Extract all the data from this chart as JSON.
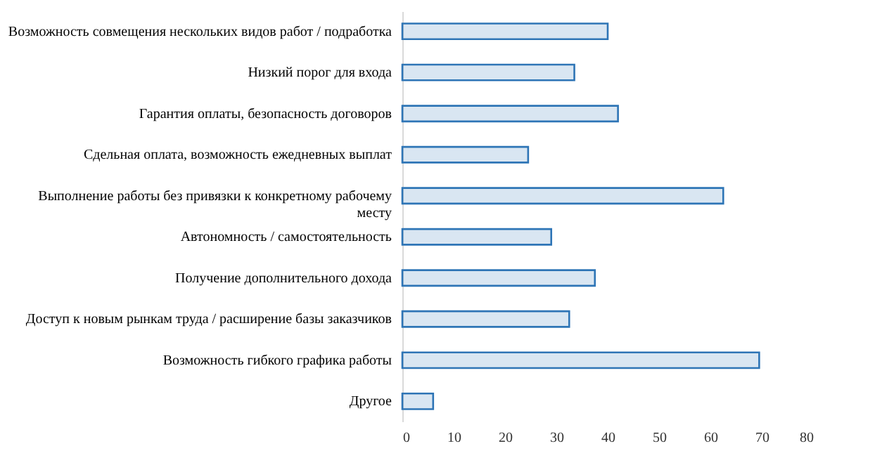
{
  "chart_data": {
    "type": "bar",
    "orientation": "horizontal",
    "categories": [
      "Возможность совмещения нескольких видов работ / подработка",
      "Низкий порог для входа",
      "Гарантия оплаты, безопасность договоров",
      "Сдельная оплата, возможность ежедневных выплат",
      "Выполнение работы без привязки к конкретному рабочему месту",
      "Автономность / самостоятельность",
      "Получение дополнительного дохода",
      "Доступ к новым рынкам труда / расширение базы заказчиков",
      "Возможность гибкого графика работы",
      "Другое"
    ],
    "values": [
      40,
      33.5,
      42,
      24.5,
      62.5,
      29,
      37.5,
      32.5,
      69.5,
      6
    ],
    "color": "#2e75b6",
    "xlim": [
      0,
      80
    ],
    "xticks": [
      0,
      10,
      20,
      30,
      40,
      50,
      60,
      70,
      80
    ],
    "grid": false
  }
}
